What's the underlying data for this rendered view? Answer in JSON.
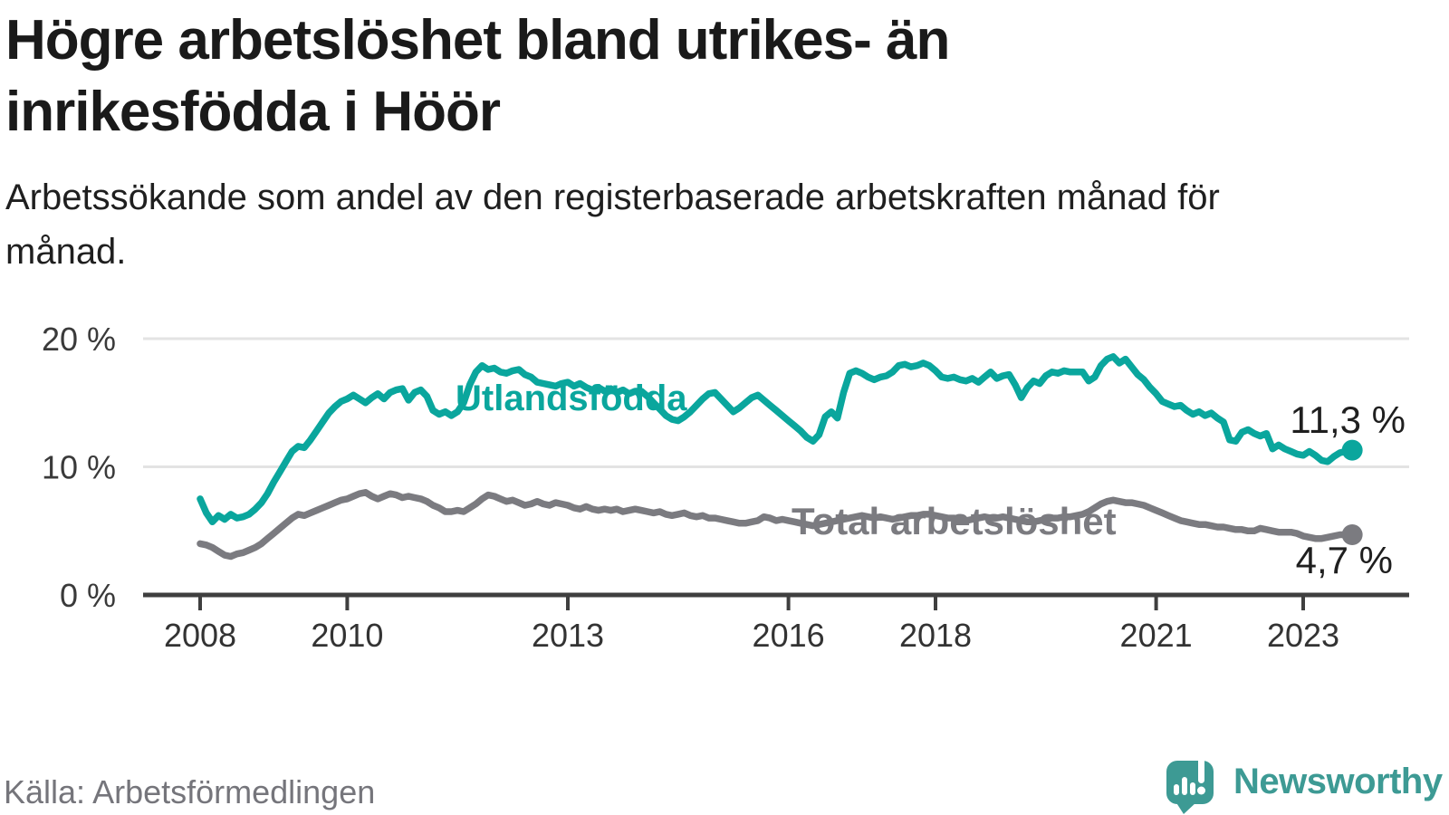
{
  "chart_data": {
    "type": "line",
    "title": "Högre arbetslöshet bland utrikes- än inrikesfödda i Höör",
    "subtitle": "Arbetssökande som andel av den registerbaserade arbetskraften månad för månad.",
    "source": "Källa: Arbetsförmedlingen",
    "unit": "percent",
    "frequency": "monthly",
    "x_start": "2008-01",
    "x_end": "2023-09",
    "ylim": [
      0,
      21.5
    ],
    "grid": "horizontal",
    "legend": "inline-labels",
    "colors": {
      "axis": "#3f3f3f",
      "gridline": "#e3e3e3",
      "tick_text": "#333333"
    },
    "y_ticks": [
      {
        "value": 20,
        "label": "20 %"
      },
      {
        "value": 10,
        "label": "10 %"
      },
      {
        "value": 0,
        "label": "0 %"
      }
    ],
    "x_ticks": [
      "2008",
      "2010",
      "2013",
      "2016",
      "2018",
      "2021",
      "2023"
    ],
    "series": [
      {
        "id": "utlandsfodda",
        "name": "Utlandsfödda",
        "color": "#0aa69d",
        "end_label": "11,3 %",
        "final_value": 11.3,
        "values": [
          7.5,
          6.4,
          5.7,
          6.2,
          5.9,
          6.3,
          6.0,
          6.1,
          6.3,
          6.7,
          7.2,
          7.9,
          8.8,
          9.6,
          10.4,
          11.2,
          11.6,
          11.5,
          12.1,
          12.8,
          13.5,
          14.2,
          14.7,
          15.1,
          15.3,
          15.6,
          15.3,
          15.0,
          15.4,
          15.7,
          15.3,
          15.8,
          16.0,
          16.1,
          15.2,
          15.8,
          16.0,
          15.5,
          14.4,
          14.1,
          14.3,
          14.0,
          14.3,
          15.0,
          16.4,
          17.4,
          17.9,
          17.6,
          17.7,
          17.4,
          17.3,
          17.5,
          17.6,
          17.2,
          17.0,
          16.6,
          16.5,
          16.4,
          16.3,
          16.5,
          16.6,
          16.3,
          16.5,
          16.2,
          16.0,
          16.2,
          15.9,
          16.1,
          15.8,
          16.0,
          15.7,
          15.9,
          15.9,
          15.5,
          15.0,
          14.5,
          14.0,
          13.7,
          13.6,
          13.9,
          14.3,
          14.8,
          15.3,
          15.7,
          15.8,
          15.3,
          14.8,
          14.3,
          14.6,
          15.0,
          15.4,
          15.6,
          15.2,
          14.8,
          14.4,
          14.0,
          13.6,
          13.2,
          12.8,
          12.3,
          12.0,
          12.5,
          13.9,
          14.3,
          13.8,
          15.8,
          17.3,
          17.5,
          17.3,
          17.0,
          16.8,
          17.0,
          17.1,
          17.4,
          17.9,
          18.0,
          17.8,
          17.9,
          18.1,
          17.9,
          17.5,
          17.0,
          16.9,
          17.0,
          16.8,
          16.7,
          16.9,
          16.6,
          17.0,
          17.4,
          16.9,
          17.1,
          17.2,
          16.4,
          15.4,
          16.2,
          16.7,
          16.5,
          17.1,
          17.4,
          17.3,
          17.5,
          17.4,
          17.4,
          17.4,
          16.7,
          17.0,
          17.9,
          18.4,
          18.6,
          18.1,
          18.4,
          17.8,
          17.2,
          16.8,
          16.2,
          15.7,
          15.1,
          14.9,
          14.7,
          14.8,
          14.4,
          14.1,
          14.3,
          14.0,
          14.2,
          13.8,
          13.5,
          12.1,
          12.0,
          12.7,
          12.9,
          12.6,
          12.4,
          12.6,
          11.4,
          11.7,
          11.4,
          11.2,
          11.0,
          10.9,
          11.2,
          10.9,
          10.5,
          10.4,
          10.8,
          11.1,
          11.2,
          11.3
        ]
      },
      {
        "id": "total-arbetsloshet",
        "name": "Total arbetslöshet",
        "color": "#7b7b80",
        "end_label": "4,7 %",
        "final_value": 4.7,
        "values": [
          4.0,
          3.9,
          3.7,
          3.4,
          3.1,
          3.0,
          3.2,
          3.3,
          3.5,
          3.7,
          4.0,
          4.4,
          4.8,
          5.2,
          5.6,
          6.0,
          6.3,
          6.2,
          6.4,
          6.6,
          6.8,
          7.0,
          7.2,
          7.4,
          7.5,
          7.7,
          7.9,
          8.0,
          7.7,
          7.5,
          7.7,
          7.9,
          7.8,
          7.6,
          7.7,
          7.6,
          7.5,
          7.3,
          7.0,
          6.8,
          6.5,
          6.5,
          6.6,
          6.5,
          6.8,
          7.1,
          7.5,
          7.8,
          7.7,
          7.5,
          7.3,
          7.4,
          7.2,
          7.0,
          7.1,
          7.3,
          7.1,
          7.0,
          7.2,
          7.1,
          7.0,
          6.8,
          6.7,
          6.9,
          6.7,
          6.6,
          6.7,
          6.6,
          6.7,
          6.5,
          6.6,
          6.7,
          6.6,
          6.5,
          6.4,
          6.5,
          6.3,
          6.2,
          6.3,
          6.4,
          6.2,
          6.1,
          6.2,
          6.0,
          6.0,
          5.9,
          5.8,
          5.7,
          5.6,
          5.6,
          5.7,
          5.8,
          6.1,
          6.0,
          5.8,
          5.9,
          5.8,
          5.7,
          5.6,
          5.5,
          5.4,
          5.5,
          5.6,
          5.7,
          5.8,
          5.9,
          6.0,
          6.1,
          6.2,
          6.1,
          6.0,
          6.1,
          6.0,
          5.9,
          6.0,
          6.1,
          6.2,
          6.2,
          6.3,
          6.3,
          6.2,
          6.1,
          6.0,
          6.0,
          5.9,
          5.8,
          5.9,
          6.0,
          6.1,
          6.0,
          6.0,
          6.1,
          6.0,
          5.9,
          5.8,
          5.7,
          5.7,
          5.8,
          5.9,
          6.0,
          6.0,
          6.1,
          6.1,
          6.2,
          6.3,
          6.5,
          6.8,
          7.1,
          7.3,
          7.4,
          7.3,
          7.2,
          7.2,
          7.1,
          7.0,
          6.8,
          6.6,
          6.4,
          6.2,
          6.0,
          5.8,
          5.7,
          5.6,
          5.5,
          5.5,
          5.4,
          5.3,
          5.3,
          5.2,
          5.1,
          5.1,
          5.0,
          5.0,
          5.2,
          5.1,
          5.0,
          4.9,
          4.9,
          4.9,
          4.8,
          4.6,
          4.5,
          4.4,
          4.4,
          4.5,
          4.6,
          4.7,
          4.7,
          4.7
        ]
      }
    ]
  },
  "branding": {
    "logo_text": "Newsworthy",
    "logo_color": "#3d9a94"
  }
}
